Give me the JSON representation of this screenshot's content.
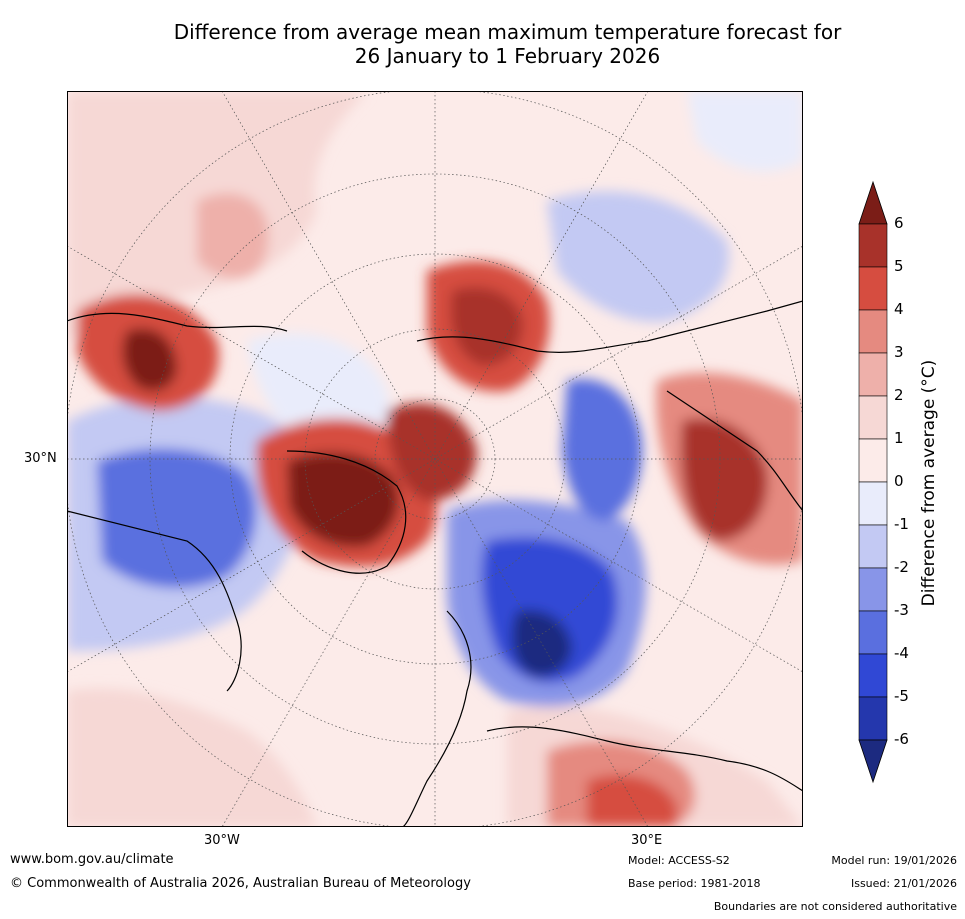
{
  "title": {
    "line1": "Difference from average mean maximum temperature forecast for",
    "line2": "26 January to 1 February 2026"
  },
  "map": {
    "lat_label": "30°N",
    "lon_labels": {
      "west": "30°W",
      "east": "30°E"
    }
  },
  "colorbar": {
    "label": "Difference from average (°C)",
    "ticks": [
      "6",
      "5",
      "4",
      "3",
      "2",
      "1",
      "0",
      "-1",
      "-2",
      "-3",
      "-4",
      "-5",
      "-6"
    ],
    "colors": [
      "#7b1d17",
      "#a8322a",
      "#d64d40",
      "#e58a80",
      "#eeb0aa",
      "#f6d8d5",
      "#fcebe9",
      "#e9ecfb",
      "#c3c9f3",
      "#8895e8",
      "#5a6fdf",
      "#3048d5",
      "#2437ad",
      "#1c2a80"
    ]
  },
  "footer": {
    "website": "www.bom.gov.au/climate",
    "copyright": "© Commonwealth of Australia 2026, Australian Bureau of Meteorology",
    "model": "Model: ACCESS-S2",
    "base_period": "Base period: 1981-2018",
    "model_run": "Model run: 19/01/2026",
    "issued": "Issued: 21/01/2026",
    "disclaimer": "Boundaries are not considered authoritative"
  }
}
